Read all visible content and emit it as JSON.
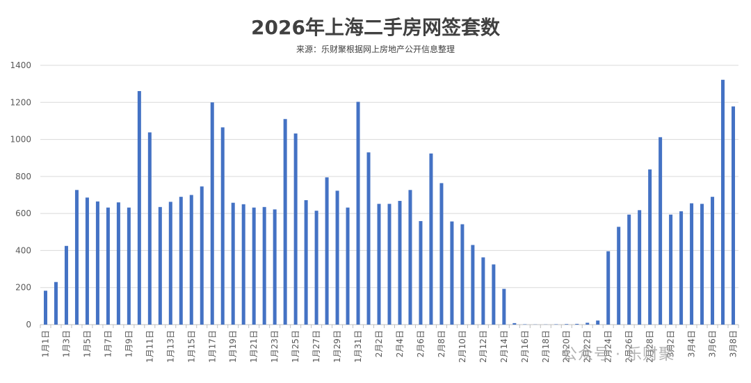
{
  "chart_data": {
    "type": "bar",
    "title": "2026年上海二手房网签套数",
    "subtitle": "来源：乐财聚根据网上房地产公开信息整理",
    "ylim": [
      0,
      1400
    ],
    "yticks": [
      0,
      200,
      400,
      600,
      800,
      1000,
      1200,
      1400
    ],
    "grid": true,
    "bar_color": "#4472C4",
    "categories": [
      "1月1日",
      "1月2日",
      "1月3日",
      "1月4日",
      "1月5日",
      "1月6日",
      "1月7日",
      "1月8日",
      "1月9日",
      "1月10日",
      "1月11日",
      "1月12日",
      "1月13日",
      "1月14日",
      "1月15日",
      "1月16日",
      "1月17日",
      "1月18日",
      "1月19日",
      "1月20日",
      "1月21日",
      "1月22日",
      "1月23日",
      "1月24日",
      "1月25日",
      "1月26日",
      "1月27日",
      "1月28日",
      "1月29日",
      "1月30日",
      "1月31日",
      "2月1日",
      "2月2日",
      "2月3日",
      "2月4日",
      "2月5日",
      "2月6日",
      "2月7日",
      "2月8日",
      "2月9日",
      "2月10日",
      "2月11日",
      "2月12日",
      "2月13日",
      "2月14日",
      "2月15日",
      "2月16日",
      "2月17日",
      "2月18日",
      "2月19日",
      "2月20日",
      "2月21日",
      "2月22日",
      "2月23日",
      "2月24日",
      "2月25日",
      "2月26日",
      "2月27日",
      "2月28日",
      "3月1日",
      "3月2日",
      "3月3日",
      "3月4日",
      "3月5日",
      "3月6日",
      "3月7日",
      "3月8日"
    ],
    "values": [
      183,
      230,
      425,
      727,
      686,
      665,
      632,
      660,
      632,
      1261,
      1038,
      635,
      663,
      690,
      700,
      746,
      1200,
      1065,
      658,
      650,
      632,
      635,
      622,
      1110,
      1032,
      672,
      615,
      795,
      723,
      632,
      1203,
      930,
      652,
      652,
      668,
      727,
      559,
      924,
      764,
      557,
      542,
      430,
      363,
      325,
      193,
      8,
      2,
      1,
      1,
      2,
      3,
      4,
      10,
      22,
      396,
      528,
      594,
      618,
      838,
      1012,
      594,
      612,
      655,
      652,
      690,
      1322,
      1178
    ],
    "x_tick_labels": [
      "1月1日",
      "1月3日",
      "1月5日",
      "1月7日",
      "1月9日",
      "1月11日",
      "1月13日",
      "1月15日",
      "1月17日",
      "1月19日",
      "1月21日",
      "1月23日",
      "1月25日",
      "1月27日",
      "1月29日",
      "1月31日",
      "2月2日",
      "2月4日",
      "2月6日",
      "2月8日",
      "2月10日",
      "2月12日",
      "2月14日",
      "2月16日",
      "2月18日",
      "2月20日",
      "2月22日",
      "2月24日",
      "2月26日",
      "2月28日",
      "3月2日",
      "3月4日",
      "3月6日",
      "3月8日"
    ]
  },
  "watermark": "公众号 · 乐财聚"
}
